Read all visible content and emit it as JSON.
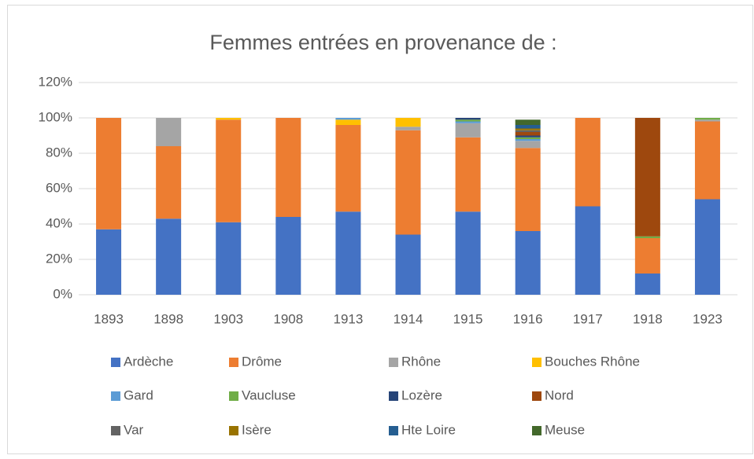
{
  "chart_data": {
    "type": "stacked_bar",
    "title": "Femmes entrées en provenance de :",
    "categories": [
      "1893",
      "1898",
      "1903",
      "1908",
      "1913",
      "1914",
      "1915",
      "1916",
      "1917",
      "1918",
      "1923"
    ],
    "series": [
      {
        "name": "Ardèche",
        "color": "#4472c4",
        "values": [
          37,
          43,
          41,
          44,
          47,
          34,
          47,
          36,
          50,
          12,
          54
        ]
      },
      {
        "name": "Drôme",
        "color": "#ed7d31",
        "values": [
          63,
          41,
          58,
          56,
          49,
          59,
          42,
          47,
          50,
          20,
          44
        ]
      },
      {
        "name": "Rhône",
        "color": "#a5a5a5",
        "values": [
          0,
          16,
          0,
          0,
          0,
          2,
          8,
          4,
          0,
          0,
          1
        ]
      },
      {
        "name": "Bouches Rhône",
        "color": "#ffc000",
        "values": [
          0,
          0,
          1,
          0,
          3,
          5,
          0,
          0,
          0,
          0,
          0
        ]
      },
      {
        "name": "Gard",
        "color": "#5b9bd5",
        "values": [
          0,
          0,
          0,
          0,
          1,
          0,
          1,
          1,
          0,
          0,
          0
        ]
      },
      {
        "name": "Vaucluse",
        "color": "#70ad47",
        "values": [
          0,
          0,
          0,
          0,
          0,
          0,
          1,
          1,
          0,
          1,
          1
        ]
      },
      {
        "name": "Lozère",
        "color": "#264478",
        "values": [
          0,
          0,
          0,
          0,
          0,
          0,
          1,
          1,
          0,
          0,
          0
        ]
      },
      {
        "name": "Nord",
        "color": "#9e480e",
        "values": [
          0,
          0,
          0,
          0,
          0,
          0,
          0,
          2,
          0,
          67,
          0
        ]
      },
      {
        "name": "Var",
        "color": "#636363",
        "values": [
          0,
          0,
          0,
          0,
          0,
          0,
          0,
          1,
          0,
          0,
          0
        ]
      },
      {
        "name": "Isère",
        "color": "#997300",
        "values": [
          0,
          0,
          0,
          0,
          0,
          0,
          0,
          1,
          0,
          0,
          0
        ]
      },
      {
        "name": "Hte Loire",
        "color": "#255e91",
        "values": [
          0,
          0,
          0,
          0,
          0,
          0,
          0,
          2,
          0,
          0,
          0
        ]
      },
      {
        "name": "Meuse",
        "color": "#43682b",
        "values": [
          0,
          0,
          0,
          0,
          0,
          0,
          0,
          3,
          0,
          0,
          0
        ]
      }
    ],
    "ylim": [
      0,
      120
    ],
    "yticks": [
      {
        "value": 0,
        "label": "0%"
      },
      {
        "value": 20,
        "label": "20%"
      },
      {
        "value": 40,
        "label": "40%"
      },
      {
        "value": 60,
        "label": "60%"
      },
      {
        "value": 80,
        "label": "80%"
      },
      {
        "value": 100,
        "label": "100%"
      },
      {
        "value": 120,
        "label": "120%"
      }
    ],
    "grid": true,
    "legend": "bottom"
  }
}
